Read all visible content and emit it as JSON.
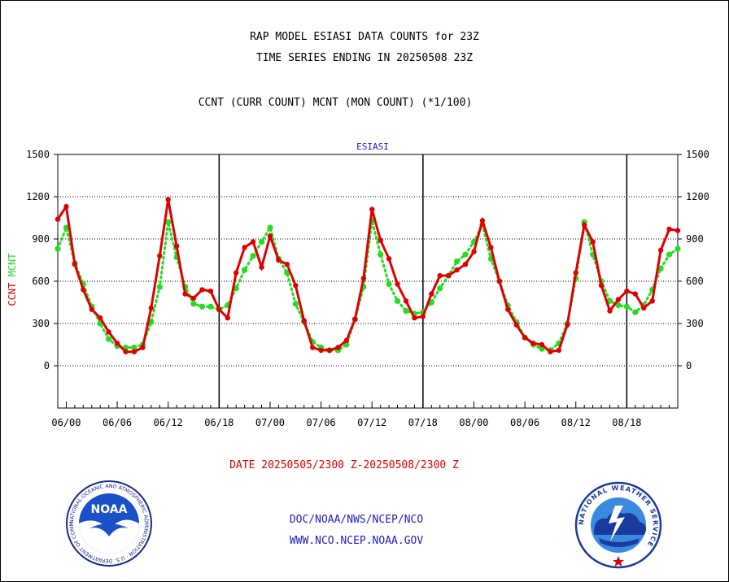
{
  "header": {
    "line1": "RAP MODEL ESIASI DATA COUNTS for 23Z",
    "line2": "TIME SERIES ENDING IN 20250508 23Z",
    "line3": "CCNT (CURR COUNT) MCNT (MON COUNT) (*1/100)"
  },
  "date_range": "DATE 20250505/2300 Z-20250508/2300 Z",
  "footer": {
    "line1": "DOC/NOAA/NWS/NCEP/NCO",
    "line2": "WWW.NCO.NCEP.NOAA.GOV"
  },
  "logos": {
    "left": {
      "name": "NOAA",
      "ring_text": "NATIONAL OCEANIC AND ATMOSPHERIC ADMINISTRATION · U.S. DEPARTMENT OF COMMERCE"
    },
    "right": {
      "ring_text": "NATIONAL WEATHER SERVICE"
    }
  },
  "colors": {
    "ccnt": "#e00000",
    "mcnt": "#22dd22",
    "text": "#000000",
    "link": "#2020c0"
  },
  "chart_data": {
    "type": "line",
    "title": "ESIASI",
    "ylabel_left": [
      "CCNT",
      "MCNT"
    ],
    "ylim": [
      -300,
      1500
    ],
    "yticks": [
      0,
      300,
      600,
      900,
      1200,
      1500
    ],
    "xlim": [
      -1,
      72
    ],
    "x_tick_labels": [
      {
        "x": 0,
        "label": "06/00"
      },
      {
        "x": 6,
        "label": "06/06"
      },
      {
        "x": 12,
        "label": "06/12"
      },
      {
        "x": 18,
        "label": "06/18"
      },
      {
        "x": 24,
        "label": "07/00"
      },
      {
        "x": 30,
        "label": "07/06"
      },
      {
        "x": 36,
        "label": "07/12"
      },
      {
        "x": 42,
        "label": "07/18"
      },
      {
        "x": 48,
        "label": "08/00"
      },
      {
        "x": 54,
        "label": "08/06"
      },
      {
        "x": 60,
        "label": "08/12"
      },
      {
        "x": 66,
        "label": "08/18"
      }
    ],
    "day_separators": [
      18,
      42,
      66
    ],
    "grid": "horizontal-dotted",
    "series": [
      {
        "name": "CCNT",
        "x": [
          -1,
          0,
          1,
          2,
          3,
          4,
          5,
          6,
          7,
          8,
          9,
          10,
          11,
          12,
          13,
          14,
          15,
          16,
          17,
          18,
          19,
          20,
          21,
          22,
          23,
          24,
          25,
          26,
          27,
          28,
          29,
          30,
          31,
          32,
          33,
          34,
          35,
          36,
          37,
          38,
          39,
          40,
          41,
          42,
          43,
          44,
          45,
          46,
          47,
          48,
          49,
          50,
          51,
          52,
          53,
          54,
          55,
          56,
          57,
          58,
          59,
          60,
          61,
          62,
          63,
          64,
          65,
          66,
          67,
          68,
          69,
          70,
          71,
          72
        ],
        "values": [
          1040,
          1130,
          720,
          540,
          400,
          340,
          240,
          160,
          100,
          100,
          130,
          410,
          780,
          1180,
          850,
          510,
          480,
          540,
          530,
          400,
          340,
          660,
          840,
          880,
          700,
          920,
          750,
          720,
          570,
          320,
          130,
          110,
          110,
          130,
          180,
          330,
          620,
          1110,
          890,
          760,
          580,
          460,
          340,
          350,
          510,
          640,
          640,
          680,
          720,
          810,
          1030,
          840,
          600,
          400,
          290,
          200,
          160,
          150,
          100,
          110,
          290,
          660,
          1000,
          880,
          570,
          390,
          470,
          530,
          510,
          410,
          460,
          820,
          970,
          960
        ]
      },
      {
        "name": "MCNT",
        "x": [
          -1,
          0,
          1,
          2,
          3,
          4,
          5,
          6,
          7,
          8,
          9,
          10,
          11,
          12,
          13,
          14,
          15,
          16,
          17,
          18,
          19,
          20,
          21,
          22,
          23,
          24,
          25,
          26,
          27,
          28,
          29,
          30,
          31,
          32,
          33,
          34,
          35,
          36,
          37,
          38,
          39,
          40,
          41,
          42,
          43,
          44,
          45,
          46,
          47,
          48,
          49,
          50,
          51,
          52,
          53,
          54,
          55,
          56,
          57,
          58,
          59,
          60,
          61,
          62,
          63,
          64,
          65,
          66,
          67,
          68,
          69,
          70,
          71,
          72
        ],
        "values": [
          830,
          980,
          730,
          580,
          420,
          300,
          190,
          140,
          130,
          130,
          150,
          310,
          560,
          1020,
          770,
          560,
          440,
          420,
          420,
          400,
          430,
          550,
          680,
          780,
          880,
          980,
          760,
          660,
          440,
          310,
          170,
          130,
          110,
          110,
          150,
          330,
          560,
          1030,
          790,
          580,
          460,
          390,
          370,
          380,
          450,
          550,
          640,
          740,
          790,
          880,
          1000,
          760,
          600,
          430,
          310,
          200,
          150,
          120,
          110,
          160,
          300,
          620,
          1020,
          790,
          600,
          460,
          430,
          420,
          380,
          430,
          540,
          690,
          790,
          830
        ]
      }
    ]
  }
}
